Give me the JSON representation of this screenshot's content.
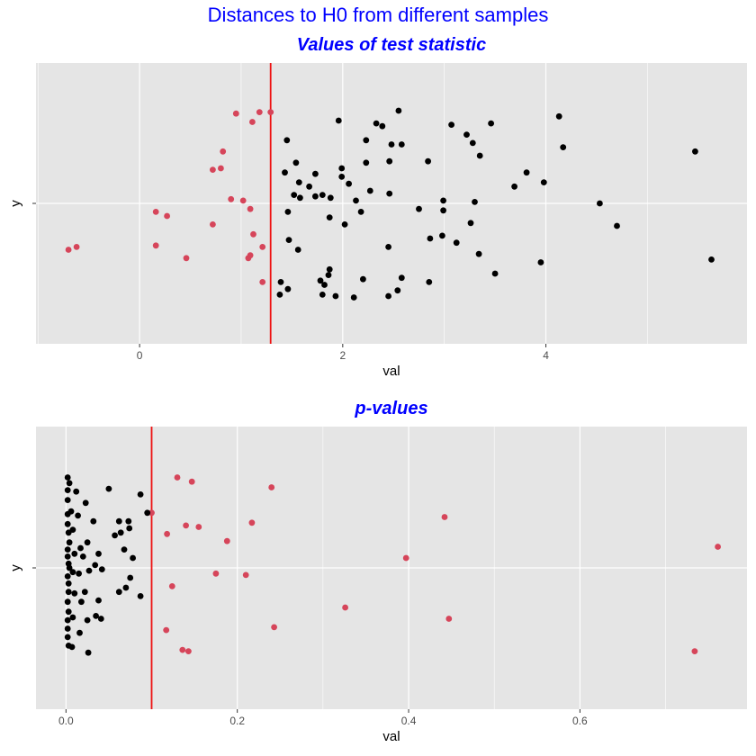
{
  "figure": {
    "title": "Distances to H0 from different samples"
  },
  "colors": {
    "background": "#e5e5e5",
    "grid": "#ffffff",
    "title": "#0000ff",
    "point_default": "#000000",
    "point_highlight": "#d6455a",
    "vline": "#ee1111"
  },
  "chart_data": [
    {
      "type": "scatter",
      "title": "Values of test statistic",
      "xlabel": "val",
      "ylabel": "y",
      "xlim": [
        -1.02,
        5.98
      ],
      "ylim": [
        -1.0,
        1.0
      ],
      "xticks": [
        0,
        2,
        4
      ],
      "xtick_labels": [
        "0",
        "2",
        "4"
      ],
      "yticks": [
        0
      ],
      "ytick_labels": [
        ""
      ],
      "grid": true,
      "legend": "none",
      "vline": 1.29,
      "series": [
        {
          "color": "#d6455a",
          "points": [
            [
              0.95,
              0.64
            ],
            [
              1.18,
              0.65
            ],
            [
              1.29,
              0.65
            ],
            [
              1.11,
              0.58
            ],
            [
              0.82,
              0.37
            ],
            [
              0.72,
              0.24
            ],
            [
              0.8,
              0.25
            ],
            [
              0.9,
              0.03
            ],
            [
              1.02,
              0.02
            ],
            [
              1.09,
              -0.04
            ],
            [
              0.16,
              -0.06
            ],
            [
              0.27,
              -0.09
            ],
            [
              0.72,
              -0.15
            ],
            [
              1.12,
              -0.22
            ],
            [
              1.21,
              -0.31
            ],
            [
              0.16,
              -0.3
            ],
            [
              -0.7,
              -0.33
            ],
            [
              -0.62,
              -0.31
            ],
            [
              0.46,
              -0.39
            ],
            [
              1.07,
              -0.39
            ],
            [
              1.09,
              -0.37
            ],
            [
              1.21,
              -0.56
            ]
          ]
        },
        {
          "color": "#000000",
          "points": [
            [
              1.45,
              0.45
            ],
            [
              1.54,
              0.29
            ],
            [
              1.43,
              0.22
            ],
            [
              1.73,
              0.21
            ],
            [
              1.67,
              0.12
            ],
            [
              1.57,
              0.15
            ],
            [
              1.52,
              0.06
            ],
            [
              1.58,
              0.04
            ],
            [
              1.73,
              0.05
            ],
            [
              1.8,
              0.06
            ],
            [
              1.88,
              0.04
            ],
            [
              1.99,
              0.25
            ],
            [
              1.99,
              0.19
            ],
            [
              2.06,
              0.14
            ],
            [
              1.96,
              0.59
            ],
            [
              2.23,
              0.29
            ],
            [
              2.27,
              0.09
            ],
            [
              2.23,
              0.45
            ],
            [
              2.33,
              0.57
            ],
            [
              2.39,
              0.55
            ],
            [
              2.46,
              0.3
            ],
            [
              2.48,
              0.42
            ],
            [
              2.46,
              0.07
            ],
            [
              2.55,
              0.66
            ],
            [
              2.58,
              0.42
            ],
            [
              2.13,
              0.02
            ],
            [
              2.18,
              -0.06
            ],
            [
              2.02,
              -0.15
            ],
            [
              1.87,
              -0.1
            ],
            [
              1.46,
              -0.06
            ],
            [
              1.47,
              -0.26
            ],
            [
              1.56,
              -0.33
            ],
            [
              1.87,
              -0.47
            ],
            [
              1.86,
              -0.51
            ],
            [
              1.82,
              -0.58
            ],
            [
              1.78,
              -0.55
            ],
            [
              1.8,
              -0.65
            ],
            [
              1.93,
              -0.66
            ],
            [
              2.11,
              -0.67
            ],
            [
              2.2,
              -0.54
            ],
            [
              2.45,
              -0.66
            ],
            [
              2.54,
              -0.62
            ],
            [
              2.58,
              -0.53
            ],
            [
              2.45,
              -0.31
            ],
            [
              1.39,
              -0.56
            ],
            [
              1.46,
              -0.61
            ],
            [
              1.38,
              -0.65
            ],
            [
              2.84,
              0.3
            ],
            [
              2.86,
              -0.25
            ],
            [
              2.75,
              -0.04
            ],
            [
              2.85,
              -0.56
            ],
            [
              2.99,
              0.02
            ],
            [
              2.98,
              -0.23
            ],
            [
              2.99,
              -0.05
            ],
            [
              3.07,
              0.56
            ],
            [
              3.12,
              -0.28
            ],
            [
              3.22,
              0.49
            ],
            [
              3.28,
              0.43
            ],
            [
              3.3,
              0.01
            ],
            [
              3.26,
              -0.14
            ],
            [
              3.35,
              0.34
            ],
            [
              3.46,
              0.57
            ],
            [
              3.34,
              -0.36
            ],
            [
              3.5,
              -0.5
            ],
            [
              3.69,
              0.12
            ],
            [
              3.81,
              0.22
            ],
            [
              3.98,
              0.15
            ],
            [
              3.95,
              -0.42
            ],
            [
              4.13,
              0.62
            ],
            [
              4.17,
              0.4
            ],
            [
              4.53,
              0.0
            ],
            [
              4.7,
              -0.16
            ],
            [
              5.47,
              0.37
            ],
            [
              5.63,
              -0.4
            ]
          ]
        }
      ]
    },
    {
      "type": "scatter",
      "title": "p-values",
      "xlabel": "val",
      "ylabel": "y",
      "xlim": [
        -0.035,
        0.795
      ],
      "ylim": [
        -1.0,
        1.0
      ],
      "xticks": [
        0.0,
        0.2,
        0.4,
        0.6
      ],
      "xtick_labels": [
        "0.0",
        "0.2",
        "0.4",
        "0.6"
      ],
      "yticks": [
        0
      ],
      "ytick_labels": [
        ""
      ],
      "grid": true,
      "legend": "none",
      "vline": 0.1,
      "series": [
        {
          "color": "#d6455a",
          "points": [
            [
              0.13,
              0.64
            ],
            [
              0.147,
              0.61
            ],
            [
              0.24,
              0.57
            ],
            [
              0.1,
              0.39
            ],
            [
              0.14,
              0.3
            ],
            [
              0.155,
              0.29
            ],
            [
              0.118,
              0.24
            ],
            [
              0.217,
              0.32
            ],
            [
              0.188,
              0.19
            ],
            [
              0.442,
              0.36
            ],
            [
              0.397,
              0.07
            ],
            [
              0.175,
              -0.04
            ],
            [
              0.21,
              -0.05
            ],
            [
              0.124,
              -0.13
            ],
            [
              0.326,
              -0.28
            ],
            [
              0.243,
              -0.42
            ],
            [
              0.447,
              -0.36
            ],
            [
              0.117,
              -0.44
            ],
            [
              0.136,
              -0.58
            ],
            [
              0.143,
              -0.59
            ],
            [
              0.734,
              -0.59
            ],
            [
              0.761,
              0.15
            ]
          ]
        },
        {
          "color": "#000000",
          "points": [
            [
              0.002,
              0.64
            ],
            [
              0.002,
              0.55
            ],
            [
              0.002,
              0.48
            ],
            [
              0.002,
              0.38
            ],
            [
              0.002,
              0.31
            ],
            [
              0.003,
              0.25
            ],
            [
              0.004,
              0.18
            ],
            [
              0.002,
              0.13
            ],
            [
              0.002,
              0.08
            ],
            [
              0.003,
              0.03
            ],
            [
              0.004,
              0.0
            ],
            [
              0.002,
              -0.06
            ],
            [
              0.003,
              -0.11
            ],
            [
              0.003,
              -0.17
            ],
            [
              0.002,
              -0.24
            ],
            [
              0.003,
              -0.31
            ],
            [
              0.002,
              -0.37
            ],
            [
              0.002,
              -0.43
            ],
            [
              0.002,
              -0.49
            ],
            [
              0.003,
              -0.55
            ],
            [
              0.004,
              0.6
            ],
            [
              0.006,
              0.4
            ],
            [
              0.008,
              0.27
            ],
            [
              0.01,
              0.1
            ],
            [
              0.008,
              -0.03
            ],
            [
              0.01,
              -0.18
            ],
            [
              0.008,
              -0.35
            ],
            [
              0.007,
              -0.56
            ],
            [
              0.012,
              0.54
            ],
            [
              0.014,
              0.37
            ],
            [
              0.017,
              0.14
            ],
            [
              0.015,
              -0.04
            ],
            [
              0.018,
              -0.24
            ],
            [
              0.016,
              -0.46
            ],
            [
              0.023,
              0.46
            ],
            [
              0.025,
              0.18
            ],
            [
              0.02,
              0.08
            ],
            [
              0.027,
              -0.02
            ],
            [
              0.022,
              -0.17
            ],
            [
              0.025,
              -0.37
            ],
            [
              0.026,
              -0.6
            ],
            [
              0.032,
              0.33
            ],
            [
              0.034,
              0.02
            ],
            [
              0.035,
              -0.34
            ],
            [
              0.038,
              0.1
            ],
            [
              0.042,
              -0.01
            ],
            [
              0.038,
              -0.23
            ],
            [
              0.041,
              -0.36
            ],
            [
              0.05,
              0.56
            ],
            [
              0.057,
              0.23
            ],
            [
              0.064,
              0.25
            ],
            [
              0.062,
              0.33
            ],
            [
              0.068,
              0.13
            ],
            [
              0.073,
              0.33
            ],
            [
              0.074,
              0.28
            ],
            [
              0.075,
              -0.07
            ],
            [
              0.078,
              0.07
            ],
            [
              0.087,
              0.52
            ],
            [
              0.087,
              -0.2
            ],
            [
              0.062,
              -0.17
            ],
            [
              0.07,
              -0.14
            ],
            [
              0.095,
              0.39
            ]
          ]
        }
      ]
    }
  ]
}
